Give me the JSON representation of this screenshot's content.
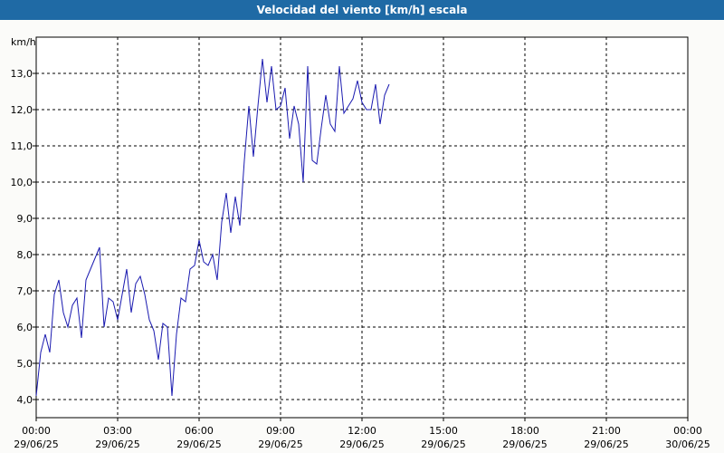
{
  "chart_data": {
    "type": "line",
    "title": "Velocidad del viento [km/h] escala",
    "ylabel": "km/h",
    "ylim": [
      3.5,
      14.0
    ],
    "y_ticks": [
      "4,0",
      "5,0",
      "6,0",
      "7,0",
      "8,0",
      "9,0",
      "10,0",
      "11,0",
      "12,0",
      "13,0"
    ],
    "x_range_hours": [
      0,
      24
    ],
    "x_ticks": [
      {
        "time": "00:00",
        "date": "29/06/25"
      },
      {
        "time": "03:00",
        "date": "29/06/25"
      },
      {
        "time": "06:00",
        "date": "29/06/25"
      },
      {
        "time": "09:00",
        "date": "29/06/25"
      },
      {
        "time": "12:00",
        "date": "29/06/25"
      },
      {
        "time": "15:00",
        "date": "29/06/25"
      },
      {
        "time": "18:00",
        "date": "29/06/25"
      },
      {
        "time": "21:00",
        "date": "29/06/25"
      },
      {
        "time": "00:00",
        "date": "30/06/25"
      }
    ],
    "grid": true,
    "line_color": "#1a1ab0",
    "series": [
      {
        "x": [
          "00:00",
          "00:10",
          "00:20",
          "00:30",
          "00:40",
          "00:50",
          "01:00",
          "01:10",
          "01:20",
          "01:30",
          "01:40",
          "01:50",
          "02:00",
          "02:10",
          "02:20",
          "02:30",
          "02:40",
          "02:50",
          "03:00",
          "03:10",
          "03:20",
          "03:30",
          "03:40",
          "03:50",
          "04:00",
          "04:10",
          "04:20",
          "04:30",
          "04:40",
          "04:50",
          "05:00",
          "05:10",
          "05:20",
          "05:30",
          "05:40",
          "05:50",
          "06:00",
          "06:10",
          "06:20",
          "06:30",
          "06:40",
          "06:50",
          "07:00",
          "07:10",
          "07:20",
          "07:30",
          "07:40",
          "07:50",
          "08:00",
          "08:10",
          "08:20",
          "08:30",
          "08:40",
          "08:50",
          "09:00",
          "09:10",
          "09:20",
          "09:30",
          "09:40",
          "09:50",
          "10:00",
          "10:10",
          "10:20",
          "10:30",
          "10:40",
          "10:50",
          "11:00",
          "11:10",
          "11:20",
          "11:30",
          "11:40",
          "11:50",
          "12:00",
          "12:10",
          "12:20",
          "12:30",
          "12:40",
          "12:50",
          "13:00"
        ],
        "values": [
          4.1,
          5.3,
          5.8,
          5.3,
          6.9,
          7.3,
          6.4,
          6.0,
          6.6,
          6.8,
          5.7,
          7.3,
          7.6,
          7.9,
          8.2,
          6.0,
          6.8,
          6.7,
          6.2,
          6.9,
          7.6,
          6.4,
          7.2,
          7.4,
          6.9,
          6.2,
          5.9,
          5.1,
          6.1,
          6.0,
          4.1,
          5.8,
          6.8,
          6.7,
          7.6,
          7.7,
          8.4,
          7.8,
          7.7,
          8.0,
          7.3,
          8.9,
          9.7,
          8.6,
          9.6,
          8.8,
          10.6,
          12.1,
          10.7,
          12.1,
          13.4,
          12.2,
          13.2,
          12.0,
          12.1,
          12.6,
          11.2,
          12.1,
          11.6,
          10.0,
          13.2,
          10.6,
          10.5,
          11.5,
          12.4,
          11.6,
          11.4,
          13.2,
          11.9,
          12.1,
          12.3,
          12.8,
          12.2,
          12.0,
          12.0,
          12.7,
          11.6,
          12.4,
          12.7
        ]
      }
    ]
  }
}
